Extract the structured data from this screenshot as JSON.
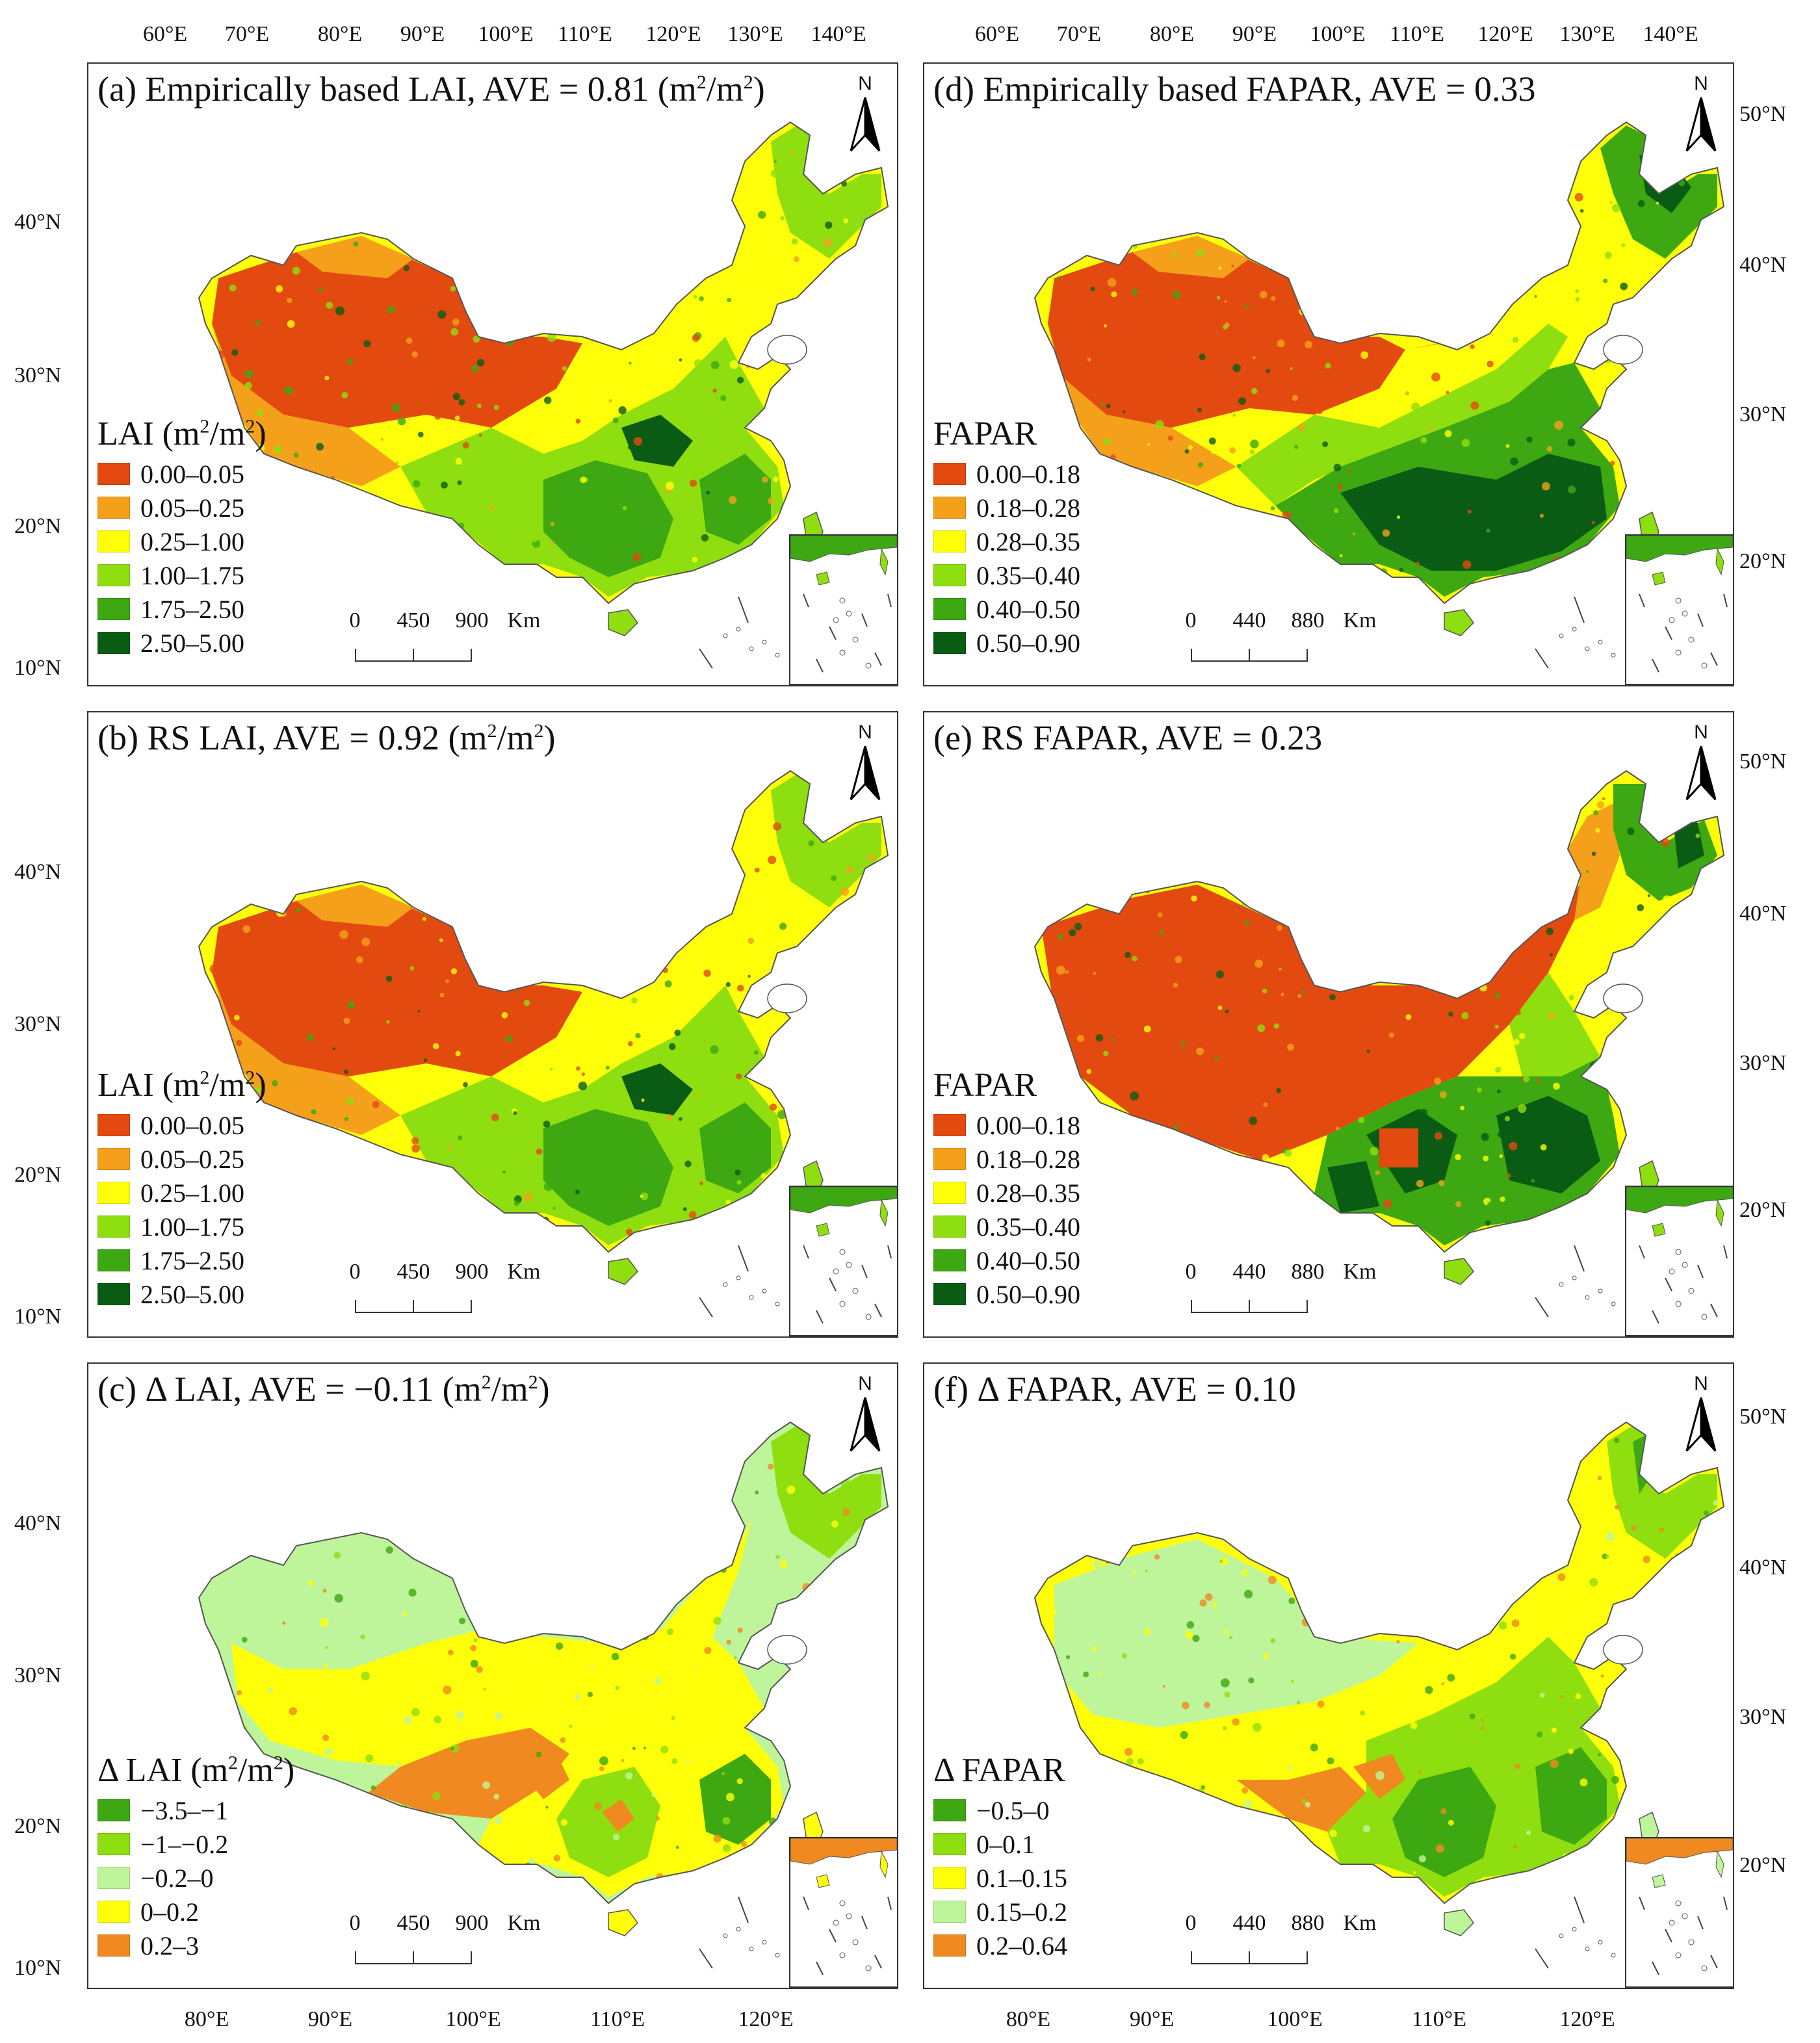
{
  "top_lon_labels": [
    "60°E",
    "70°E",
    "80°E",
    "90°E",
    "100°E",
    "110°E",
    "120°E",
    "130°E",
    "140°E"
  ],
  "bottom_lon_labels": [
    "80°E",
    "90°E",
    "100°E",
    "110°E",
    "120°E"
  ],
  "left_lat_labels": {
    "a": [
      "40°N",
      "30°N",
      "20°N",
      "10°N"
    ],
    "b": [
      "40°N",
      "30°N",
      "20°N",
      "10°N"
    ],
    "c": [
      "40°N",
      "30°N",
      "20°N",
      "10°N"
    ]
  },
  "right_lat_labels": {
    "d": [
      "50°N",
      "40°N",
      "30°N",
      "20°N"
    ],
    "e": [
      "50°N",
      "40°N",
      "30°N",
      "20°N"
    ],
    "f": [
      "50°N",
      "40°N",
      "30°N",
      "20°N"
    ]
  },
  "colors": {
    "lai": [
      "#e34a10",
      "#f5a01a",
      "#ffff0a",
      "#8fde0f",
      "#3da812",
      "#0a5c14"
    ],
    "delta_lai": [
      "#3da812",
      "#8fde0f",
      "#bff59a",
      "#ffff0a",
      "#f08a20"
    ],
    "delta_fapar": [
      "#3da812",
      "#8fde0f",
      "#ffff0a",
      "#bff59a",
      "#f08a20"
    ]
  },
  "panels": {
    "a": {
      "title_pre": "(a) Empirically based LAI, AVE = 0.81 (m",
      "title_sup1": "2",
      "title_mid": "/m",
      "title_sup2": "2",
      "title_post": ")",
      "legend_title_pre": "LAI (m",
      "legend_title_sup1": "2",
      "legend_title_mid": "/m",
      "legend_title_sup2": "2",
      "legend_title_post": ")",
      "legend": [
        "0.00–0.05",
        "0.05–0.25",
        "0.25–1.00",
        "1.00–1.75",
        "1.75–2.50",
        "2.50–5.00"
      ],
      "scale": [
        "0",
        "450",
        "900",
        "Km"
      ],
      "north": "N"
    },
    "b": {
      "title_pre": "(b) RS LAI, AVE = 0.92 (m",
      "title_sup1": "2",
      "title_mid": "/m",
      "title_sup2": "2",
      "title_post": ")",
      "legend_title_pre": "LAI (m",
      "legend_title_sup1": "2",
      "legend_title_mid": "/m",
      "legend_title_sup2": "2",
      "legend_title_post": ")",
      "legend": [
        "0.00–0.05",
        "0.05–0.25",
        "0.25–1.00",
        "1.00–1.75",
        "1.75–2.50",
        "2.50–5.00"
      ],
      "scale": [
        "0",
        "450",
        "900",
        "Km"
      ],
      "north": "N"
    },
    "c": {
      "title_pre": "(c) Δ LAI, AVE = −0.11 (m",
      "title_sup1": "2",
      "title_mid": "/m",
      "title_sup2": "2",
      "title_post": ")",
      "legend_title_pre": "Δ LAI (m",
      "legend_title_sup1": "2",
      "legend_title_mid": "/m",
      "legend_title_sup2": "2",
      "legend_title_post": ")",
      "legend": [
        "−3.5–−1",
        "−1–−0.2",
        "−0.2–0",
        "0–0.2",
        "0.2–3"
      ],
      "scale": [
        "0",
        "450",
        "900",
        "Km"
      ],
      "north": "N"
    },
    "d": {
      "title": "(d) Empirically based FAPAR, AVE = 0.33",
      "legend_title": "FAPAR",
      "legend": [
        "0.00–0.18",
        "0.18–0.28",
        "0.28–0.35",
        "0.35–0.40",
        "0.40–0.50",
        "0.50–0.90"
      ],
      "scale": [
        "0",
        "440",
        "880",
        "Km"
      ],
      "north": "N"
    },
    "e": {
      "title": "(e) RS FAPAR, AVE = 0.23",
      "legend_title": "FAPAR",
      "legend": [
        "0.00–0.18",
        "0.18–0.28",
        "0.28–0.35",
        "0.35–0.40",
        "0.40–0.50",
        "0.50–0.90"
      ],
      "scale": [
        "0",
        "440",
        "880",
        "Km"
      ],
      "north": "N"
    },
    "f": {
      "title": "(f) Δ FAPAR, AVE = 0.10",
      "legend_title": "Δ FAPAR",
      "legend": [
        "−0.5–0",
        "0–0.1",
        "0.1–0.15",
        "0.15–0.2",
        "0.2–0.64"
      ],
      "scale": [
        "0",
        "440",
        "880",
        "Km"
      ],
      "north": "N"
    }
  }
}
